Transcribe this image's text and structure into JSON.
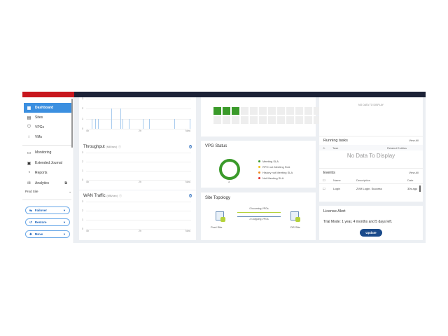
{
  "sidebar": {
    "items": [
      {
        "label": "Dashboard",
        "icon": "dashboard-icon",
        "active": true
      },
      {
        "label": "Sites",
        "icon": "sites-icon"
      },
      {
        "label": "VPGs",
        "icon": "vpgs-icon"
      },
      {
        "label": "VMs",
        "icon": "vms-icon"
      },
      {
        "label": "Monitoring",
        "icon": "monitor-icon"
      },
      {
        "label": "Extended Journal",
        "icon": "journal-icon"
      },
      {
        "label": "Reports",
        "icon": "reports-icon"
      },
      {
        "label": "Analytics",
        "icon": "analytics-icon"
      }
    ],
    "site_selector": "Prod Site",
    "actions": [
      {
        "label": "Failover"
      },
      {
        "label": "Restore"
      },
      {
        "label": "Move"
      }
    ]
  },
  "colors": {
    "brand_red": "#c8171e",
    "topbar": "#1c2237",
    "accent": "#3b8fe0",
    "green": "#3a9a2a",
    "button": "#1a4a8a"
  },
  "charts": {
    "x_ticks": [
      "4h",
      "2h",
      "Now"
    ],
    "iops": {
      "y_ticks": [
        "3",
        "2",
        "1",
        "0"
      ],
      "bars": [
        {
          "t": -3.78,
          "v": 1
        },
        {
          "t": -3.65,
          "v": 1
        },
        {
          "t": -3.53,
          "v": 1
        },
        {
          "t": -3.02,
          "v": 2
        },
        {
          "t": -2.67,
          "v": 2
        },
        {
          "t": -2.6,
          "v": 1
        },
        {
          "t": -2.34,
          "v": 1
        },
        {
          "t": -1.82,
          "v": 1
        },
        {
          "t": -1.56,
          "v": 1
        },
        {
          "t": -0.6,
          "v": 1
        },
        {
          "t": 0,
          "v": 1
        }
      ]
    },
    "throughput": {
      "title": "Throughput",
      "unit": "(MB/sec)",
      "value": "0",
      "y_ticks": [
        "3",
        "2",
        "1",
        "0"
      ]
    },
    "wan": {
      "title": "WAN Traffic",
      "unit": "(MB/sec)",
      "value": "0",
      "y_ticks": [
        "3",
        "2",
        "1",
        "0"
      ]
    }
  },
  "heatmap": {
    "filled": 3,
    "total": 26
  },
  "vpg_status": {
    "title": "VPG Status",
    "count": "3",
    "legend": [
      {
        "label": "Meeting SLA",
        "color": "#3a9a2a"
      },
      {
        "label": "RPO not Meeting SLA",
        "color": "#f2c21b"
      },
      {
        "label": "History not Meeting SLA",
        "color": "#f08a1d"
      },
      {
        "label": "Not Meeting SLA",
        "color": "#e02b2b"
      }
    ]
  },
  "site_topology": {
    "title": "Site Topology",
    "incoming": "0 Incoming VPGs",
    "outgoing": "2 Outgoing VPGs",
    "source": "Prod Site",
    "target": "DR Site"
  },
  "alerts_panel": {
    "empty": "NO DATA TO DISPLAY"
  },
  "running_tasks": {
    "title": "Running tasks",
    "view_all": "View All",
    "columns": [
      "Task",
      "Related Entities"
    ],
    "empty": "No Data To Display"
  },
  "events": {
    "title": "Events",
    "view_all": "View All",
    "columns": [
      "Name",
      "Description",
      "Date"
    ],
    "rows": [
      {
        "name": "Login",
        "description": "ZVM Login. Success",
        "date": "30s ago"
      }
    ]
  },
  "license": {
    "title": "License Alert",
    "message": "Trial Mode: 1 year, 4 months and 5 days left.",
    "button": "Update"
  }
}
